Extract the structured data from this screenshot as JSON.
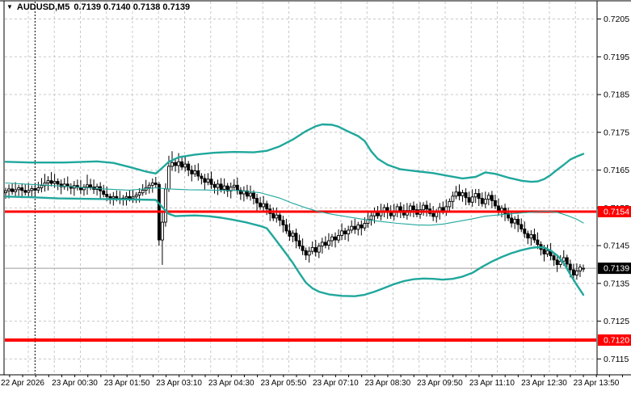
{
  "header": {
    "symbol_period": "AUDUSD,M5",
    "ohlc_text": "0.7139 0.7140 0.7138 0.7139"
  },
  "colors": {
    "bands": "#20a79c",
    "grid": "#c8c8c8",
    "hline": "#ff0000",
    "bull": "#ffffff",
    "bear": "#000000",
    "separator": "#000000",
    "last_price_line": "#9a9a9a",
    "badge_text": "#ffffff",
    "axis_text": "#000000"
  },
  "chart_data": {
    "type": "candlestick",
    "symbol": "AUDUSD",
    "timeframe": "M5",
    "indicator": "Bollinger Bands",
    "quote": {
      "open": "0.7139",
      "high": "0.7140",
      "low": "0.7138",
      "close": "0.7139"
    },
    "x_labels": [
      "22 Apr 2026",
      "23 Apr 00:30",
      "23 Apr 01:50",
      "23 Apr 03:10",
      "23 Apr 04:30",
      "23 Apr 05:50",
      "23 Apr 07:10",
      "23 Apr 08:30",
      "23 Apr 09:50",
      "23 Apr 11:10",
      "23 Apr 12:30",
      "23 Apr 13:50"
    ],
    "y_ticks": [
      "0.7205",
      "0.7195",
      "0.7185",
      "0.7175",
      "0.7165",
      "0.7155",
      "0.7145",
      "0.7135",
      "0.7125",
      "0.7115"
    ],
    "ylim": [
      0.71108,
      0.720982
    ],
    "separator_index": 9,
    "last_price": {
      "price": 0.7139,
      "label": "0.7139"
    },
    "hlines": [
      {
        "price": 0.7154,
        "label": "0.7154",
        "color": "#ff0000",
        "width": 3
      },
      {
        "price": 0.712,
        "label": "0.7120",
        "color": "#ff0000",
        "width": 4
      }
    ],
    "candles": {
      "open0": 0.7159,
      "closes": [
        0.71595,
        0.716,
        0.71593,
        0.71598,
        0.71603,
        0.71596,
        0.71591,
        0.71596,
        0.71601,
        0.71597,
        0.71603,
        0.71609,
        0.71616,
        0.71622,
        0.71615,
        0.7162,
        0.71613,
        0.71606,
        0.71613,
        0.71607,
        0.71602,
        0.71609,
        0.71604,
        0.71598,
        0.71605,
        0.71611,
        0.71605,
        0.71599,
        0.71606,
        0.71595,
        0.71586,
        0.7158,
        0.71576,
        0.7158,
        0.71575,
        0.71572,
        0.71576,
        0.7158,
        0.71575,
        0.71579,
        0.71584,
        0.7159,
        0.71597,
        0.71604,
        0.7161,
        0.71616,
        0.71612,
        0.71465,
        0.71512,
        0.716,
        0.7166,
        0.7167,
        0.71662,
        0.71672,
        0.71658,
        0.71666,
        0.7165,
        0.7164,
        0.71648,
        0.71634,
        0.71628,
        0.71618,
        0.71626,
        0.71612,
        0.71604,
        0.71613,
        0.71599,
        0.71608,
        0.71595,
        0.71605,
        0.7161,
        0.71597,
        0.71587,
        0.71595,
        0.71581,
        0.71589,
        0.71575,
        0.71563,
        0.71553,
        0.71561,
        0.71547,
        0.71535,
        0.71523,
        0.71531,
        0.71517,
        0.71505,
        0.71489,
        0.71475,
        0.71483,
        0.71463,
        0.71449,
        0.71437,
        0.71425,
        0.71435,
        0.71445,
        0.71433,
        0.71449,
        0.71459,
        0.71451,
        0.71463,
        0.71473,
        0.71465,
        0.71477,
        0.71489,
        0.71481,
        0.71491,
        0.71501,
        0.71493,
        0.71505,
        0.71497,
        0.71509,
        0.71519,
        0.71529,
        0.71539,
        0.71529,
        0.71541,
        0.71551,
        0.71541,
        0.71529,
        0.71541,
        0.71553,
        0.71543,
        0.71531,
        0.71543,
        0.71555,
        0.71545,
        0.71533,
        0.71545,
        0.71557,
        0.71547,
        0.71535,
        0.71527,
        0.71539,
        0.71551,
        0.71541,
        0.71553,
        0.71567,
        0.71581,
        0.71592,
        0.71582,
        0.7159,
        0.71577,
        0.71565,
        0.71579,
        0.71588,
        0.71575,
        0.71561,
        0.71573,
        0.71583,
        0.71569,
        0.71555,
        0.71541,
        0.71549,
        0.71535,
        0.71523,
        0.7151,
        0.7152,
        0.71506,
        0.71494,
        0.71482,
        0.7147,
        0.71479,
        0.71465,
        0.71453,
        0.7144,
        0.71428,
        0.71437,
        0.71423,
        0.71412,
        0.714,
        0.71409,
        0.71418,
        0.71401,
        0.71386,
        0.71372,
        0.71383,
        0.71393,
        0.7139
      ],
      "overrides": {
        "12": {
          "h": 0.7164
        },
        "14": {
          "h": 0.71645
        },
        "25": {
          "h": 0.71638
        },
        "47": {
          "h": 0.71618,
          "l": 0.7145
        },
        "48": {
          "h": 0.7154,
          "l": 0.71399
        },
        "49": {
          "h": 0.71615,
          "l": 0.715
        },
        "50": {
          "h": 0.71688
        },
        "51": {
          "h": 0.717
        },
        "53": {
          "h": 0.71695
        },
        "92": {
          "l": 0.71412
        },
        "138": {
          "h": 0.71608
        },
        "144": {
          "h": 0.716
        },
        "174": {
          "l": 0.71355
        },
        "177": {
          "o": 0.7139,
          "h": 0.714,
          "l": 0.7138,
          "c": 0.7139
        }
      }
    },
    "bollinger": {
      "upper": [
        [
          0,
          0.71672
        ],
        [
          8,
          0.7167
        ],
        [
          18,
          0.7167
        ],
        [
          28,
          0.71673
        ],
        [
          33,
          0.71669
        ],
        [
          38,
          0.71658
        ],
        [
          43,
          0.71646
        ],
        [
          46,
          0.71641
        ],
        [
          48,
          0.71656
        ],
        [
          50,
          0.71672
        ],
        [
          53,
          0.71684
        ],
        [
          58,
          0.71691
        ],
        [
          64,
          0.71696
        ],
        [
          70,
          0.71698
        ],
        [
          76,
          0.71697
        ],
        [
          80,
          0.71701
        ],
        [
          84,
          0.71713
        ],
        [
          88,
          0.71731
        ],
        [
          92,
          0.71753
        ],
        [
          95,
          0.71766
        ],
        [
          97,
          0.71771
        ],
        [
          100,
          0.7177
        ],
        [
          102,
          0.71765
        ],
        [
          105,
          0.71752
        ],
        [
          108,
          0.7174
        ],
        [
          110,
          0.71727
        ],
        [
          112,
          0.717
        ],
        [
          114,
          0.7168
        ],
        [
          117,
          0.71664
        ],
        [
          121,
          0.71652
        ],
        [
          126,
          0.71647
        ],
        [
          131,
          0.71642
        ],
        [
          136,
          0.71634
        ],
        [
          140,
          0.71628
        ],
        [
          144,
          0.71632
        ],
        [
          147,
          0.71644
        ],
        [
          150,
          0.7164
        ],
        [
          154,
          0.7163
        ],
        [
          158,
          0.71622
        ],
        [
          161,
          0.71619
        ],
        [
          163,
          0.7162
        ],
        [
          165,
          0.71626
        ],
        [
          167,
          0.71637
        ],
        [
          169,
          0.71651
        ],
        [
          171,
          0.71664
        ],
        [
          173,
          0.71678
        ],
        [
          175,
          0.71686
        ],
        [
          177,
          0.71693
        ]
      ],
      "middle": [
        [
          0,
          0.71616
        ],
        [
          10,
          0.71611
        ],
        [
          20,
          0.71606
        ],
        [
          30,
          0.716
        ],
        [
          38,
          0.71597
        ],
        [
          46,
          0.71603
        ],
        [
          50,
          0.716
        ],
        [
          56,
          0.71598
        ],
        [
          64,
          0.71597
        ],
        [
          71,
          0.71596
        ],
        [
          78,
          0.7159
        ],
        [
          84,
          0.71576
        ],
        [
          88,
          0.71562
        ],
        [
          92,
          0.7155
        ],
        [
          96,
          0.7154
        ],
        [
          100,
          0.71533
        ],
        [
          105,
          0.71526
        ],
        [
          110,
          0.71519
        ],
        [
          115,
          0.71514
        ],
        [
          120,
          0.71509
        ],
        [
          126,
          0.71505
        ],
        [
          130,
          0.71504
        ],
        [
          134,
          0.71507
        ],
        [
          138,
          0.71513
        ],
        [
          143,
          0.71521
        ],
        [
          147,
          0.71528
        ],
        [
          152,
          0.71532
        ],
        [
          157,
          0.71536
        ],
        [
          162,
          0.71539
        ],
        [
          166,
          0.71541
        ],
        [
          169,
          0.71538
        ],
        [
          172,
          0.7153
        ],
        [
          175,
          0.7152
        ],
        [
          177,
          0.7151
        ]
      ],
      "lower": [
        [
          0,
          0.7158
        ],
        [
          8,
          0.71578
        ],
        [
          16,
          0.71575
        ],
        [
          24,
          0.71574
        ],
        [
          32,
          0.71573
        ],
        [
          40,
          0.71572
        ],
        [
          46,
          0.71571
        ],
        [
          48,
          0.71552
        ],
        [
          50,
          0.71534
        ],
        [
          52,
          0.71528
        ],
        [
          55,
          0.71529
        ],
        [
          58,
          0.7153
        ],
        [
          62,
          0.71528
        ],
        [
          66,
          0.71524
        ],
        [
          70,
          0.71518
        ],
        [
          74,
          0.71511
        ],
        [
          78,
          0.71502
        ],
        [
          80,
          0.71496
        ],
        [
          82,
          0.71474
        ],
        [
          84,
          0.71451
        ],
        [
          86,
          0.71428
        ],
        [
          88,
          0.71404
        ],
        [
          90,
          0.71377
        ],
        [
          92,
          0.71352
        ],
        [
          94,
          0.71337
        ],
        [
          96,
          0.71328
        ],
        [
          99,
          0.71321
        ],
        [
          103,
          0.71317
        ],
        [
          107,
          0.71316
        ],
        [
          110,
          0.7132
        ],
        [
          113,
          0.71328
        ],
        [
          116,
          0.71338
        ],
        [
          119,
          0.71348
        ],
        [
          122,
          0.71356
        ],
        [
          125,
          0.71361
        ],
        [
          128,
          0.71363
        ],
        [
          131,
          0.71362
        ],
        [
          134,
          0.7136
        ],
        [
          137,
          0.71362
        ],
        [
          140,
          0.71368
        ],
        [
          143,
          0.71378
        ],
        [
          146,
          0.71394
        ],
        [
          149,
          0.71408
        ],
        [
          152,
          0.7142
        ],
        [
          155,
          0.7143
        ],
        [
          158,
          0.71438
        ],
        [
          161,
          0.71444
        ],
        [
          163,
          0.71446
        ],
        [
          165,
          0.71445
        ],
        [
          167,
          0.71437
        ],
        [
          169,
          0.71424
        ],
        [
          171,
          0.71404
        ],
        [
          173,
          0.71374
        ],
        [
          175,
          0.71346
        ],
        [
          177,
          0.7132
        ]
      ]
    }
  }
}
